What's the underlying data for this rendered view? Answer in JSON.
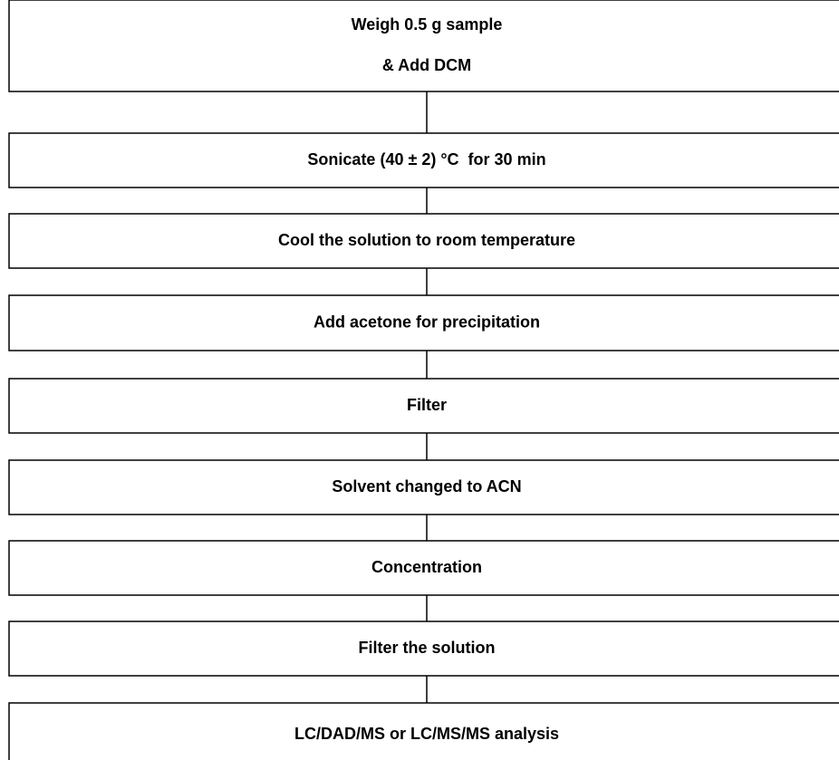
{
  "nodes": [
    {
      "lines": [
        "Weigh 0.5 g sample",
        "& Add DCM"
      ]
    },
    {
      "lines": [
        "Sonicate (40 ± 2) °C  for 30 min"
      ]
    },
    {
      "lines": [
        "Cool the solution to room temperature"
      ]
    },
    {
      "lines": [
        "Add acetone for precipitation"
      ]
    },
    {
      "lines": [
        "Filter"
      ]
    },
    {
      "lines": [
        "Solvent changed to ACN"
      ]
    },
    {
      "lines": [
        "Concentration"
      ]
    },
    {
      "lines": [
        "Filter the solution"
      ]
    },
    {
      "lines": [
        "LC/DAD/MS or LC/MS/MS analysis"
      ]
    }
  ]
}
